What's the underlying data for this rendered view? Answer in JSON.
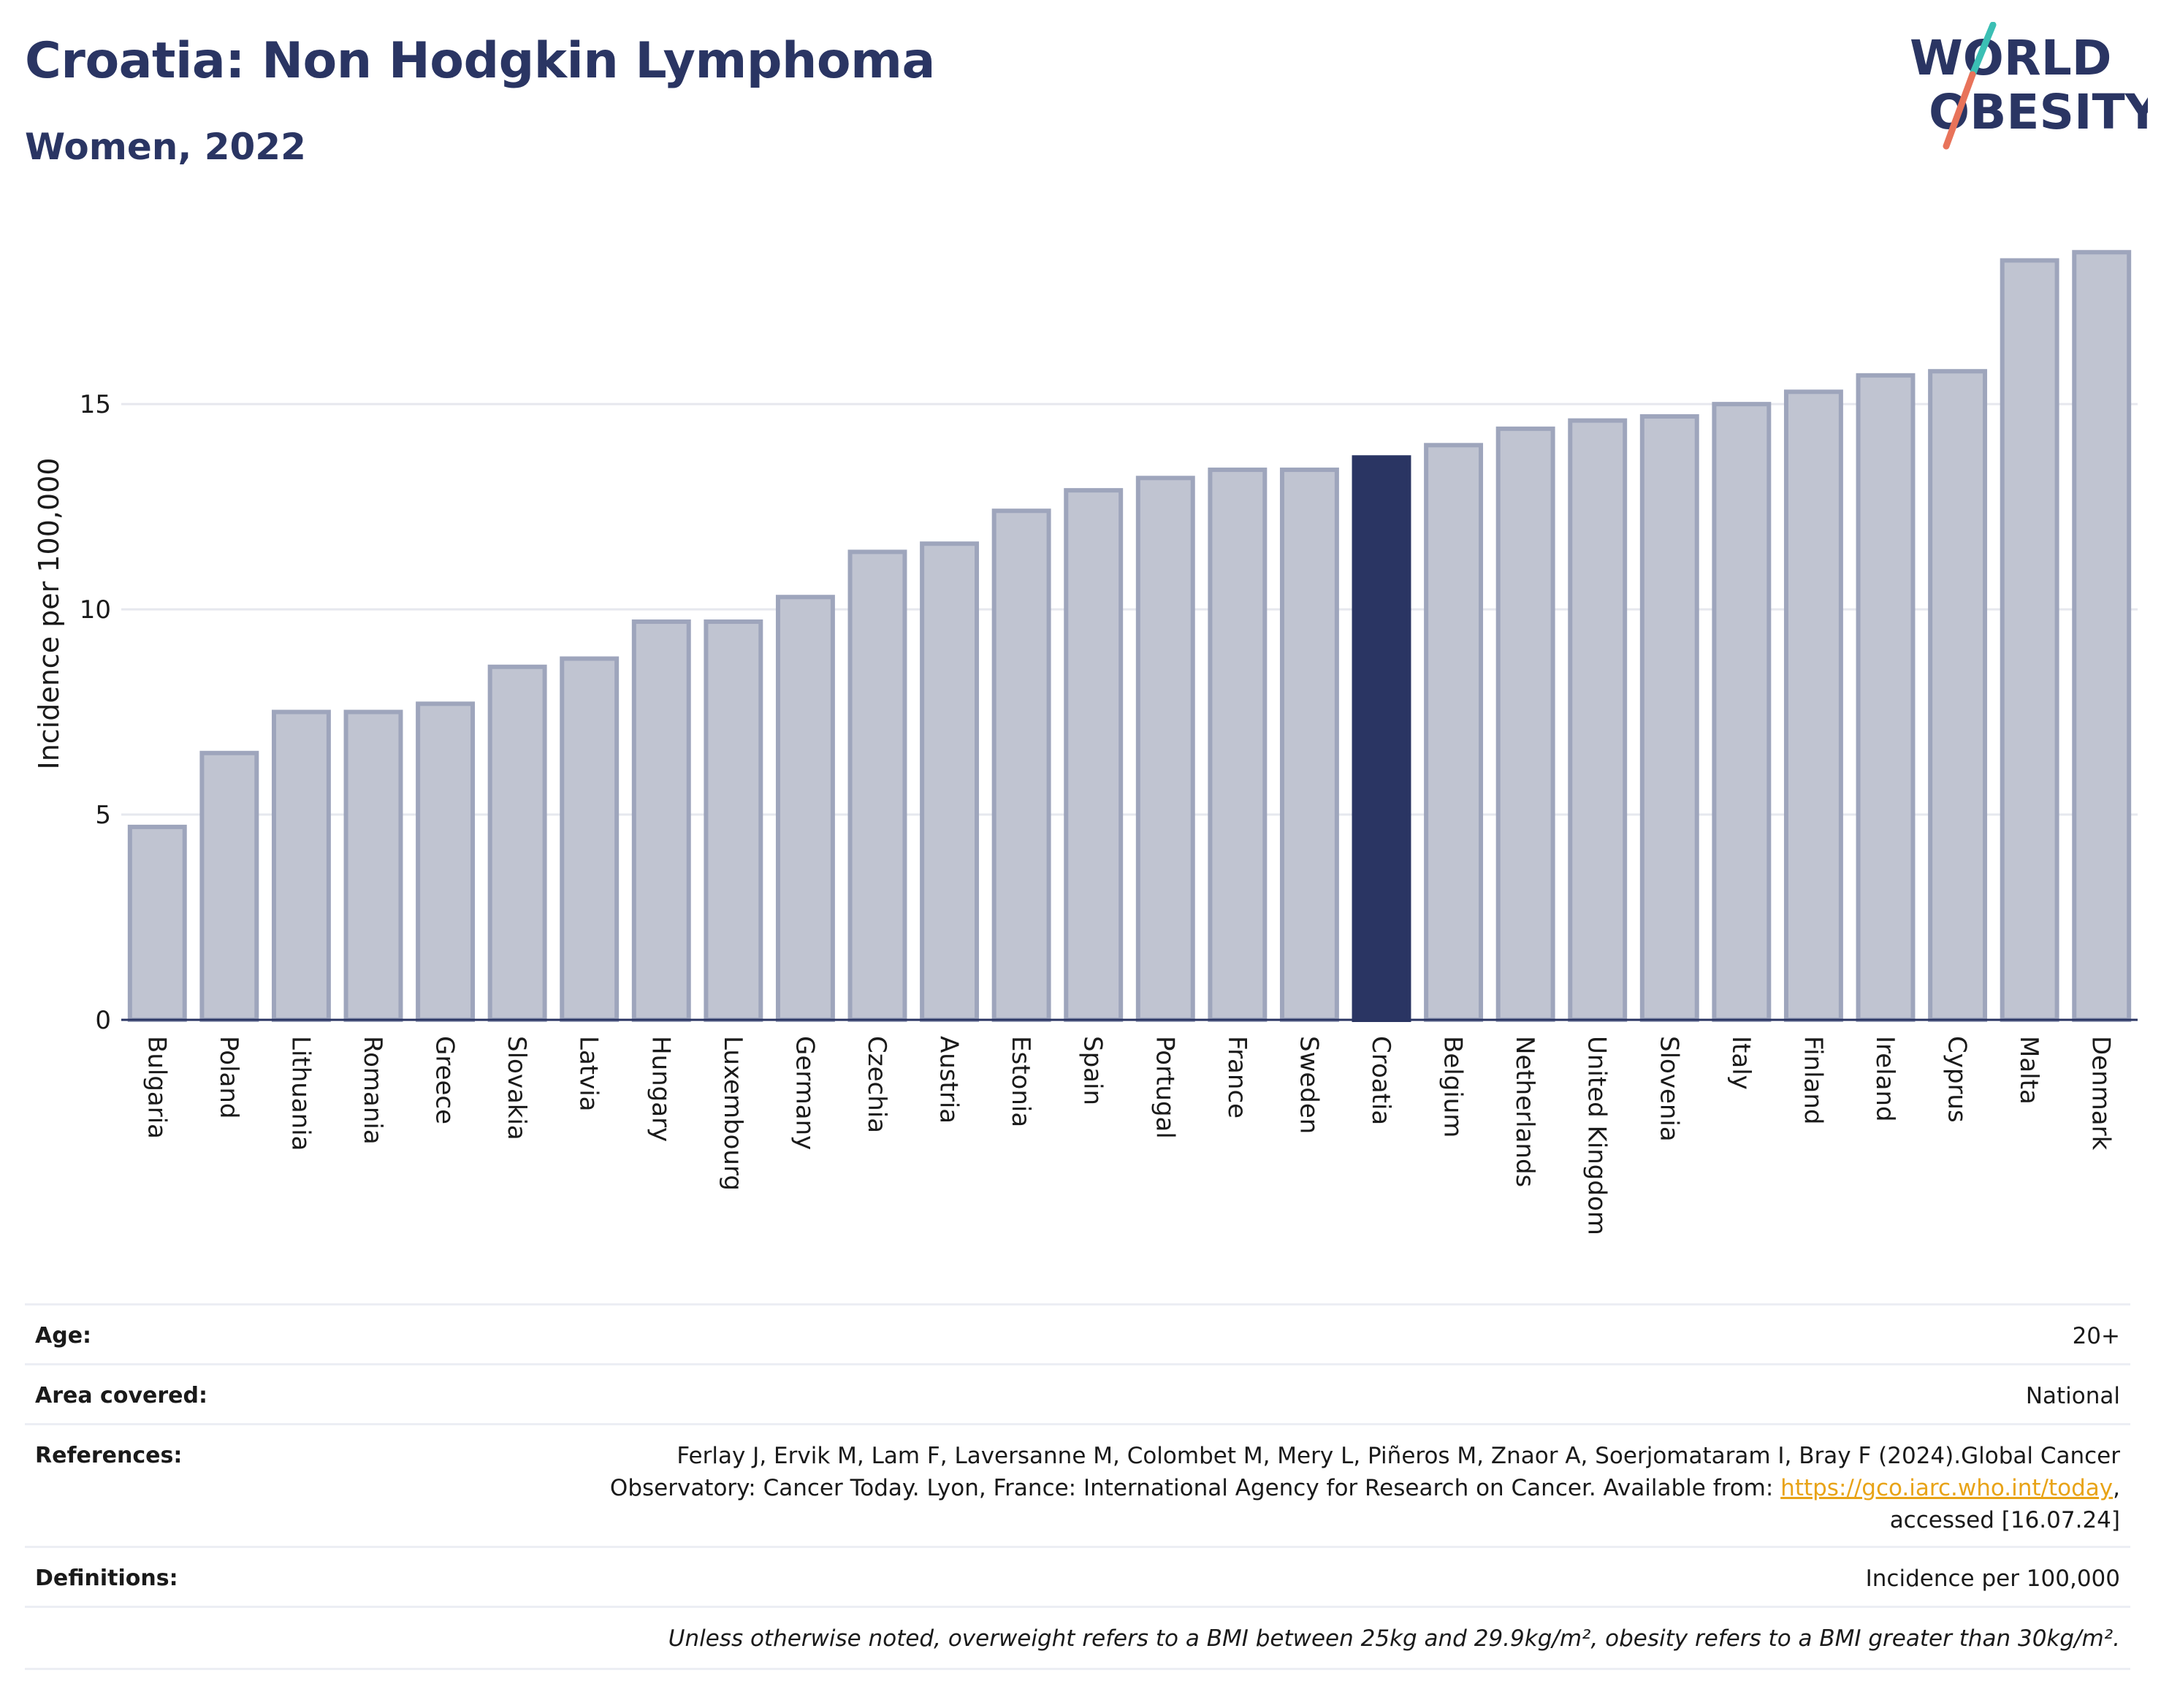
{
  "header": {
    "title": "Croatia: Non Hodgkin Lymphoma",
    "subtitle": "Women, 2022"
  },
  "logo": {
    "line1": "WORLD",
    "line2": "OBESITY",
    "colors": {
      "text": "#2a3563",
      "slash_top": "#3bbfb4",
      "slash_bottom": "#e8735a"
    }
  },
  "chart_data": {
    "type": "bar",
    "ylabel": "Incidence per 100,000",
    "xlabel": "",
    "ylim": [
      0,
      19
    ],
    "yticks": [
      0,
      5,
      10,
      15
    ],
    "grid": true,
    "highlight": "Croatia",
    "colors": {
      "bar": "#c0c4d1",
      "bar_border": "#9ea5bc",
      "highlight": "#2a3563",
      "grid": "#e6e8ee",
      "axis": "#2a3563"
    },
    "categories": [
      "Bulgaria",
      "Poland",
      "Lithuania",
      "Romania",
      "Greece",
      "Slovakia",
      "Latvia",
      "Hungary",
      "Luxembourg",
      "Germany",
      "Czechia",
      "Austria",
      "Estonia",
      "Spain",
      "Portugal",
      "France",
      "Sweden",
      "Croatia",
      "Belgium",
      "Netherlands",
      "United Kingdom",
      "Slovenia",
      "Italy",
      "Finland",
      "Ireland",
      "Cyprus",
      "Malta",
      "Denmark"
    ],
    "values": [
      4.7,
      6.5,
      7.5,
      7.5,
      7.7,
      8.6,
      8.8,
      9.7,
      9.7,
      10.3,
      11.4,
      11.6,
      12.4,
      12.9,
      13.2,
      13.4,
      13.4,
      13.7,
      14.0,
      14.4,
      14.6,
      14.7,
      15.0,
      15.3,
      15.7,
      15.8,
      18.5,
      18.7
    ]
  },
  "meta": {
    "age_label": "Age:",
    "age_value": "20+",
    "area_label": "Area covered:",
    "area_value": "National",
    "references_label": "References:",
    "references_line1": "Ferlay J, Ervik M, Lam F, Laversanne M, Colombet M, Mery L, Piñeros M, Znaor A, Soerjomataram I, Bray F (2024).Global Cancer",
    "references_line2_pre": "Observatory: Cancer Today. Lyon, France: International Agency for Research on Cancer. Available from: ",
    "references_link": "https://gco.iarc.who.int/today",
    "references_line2_post": ",",
    "references_line3": "accessed [16.07.24]",
    "definitions_label": "Definitions:",
    "definitions_value": "Incidence per 100,000",
    "note": "Unless otherwise noted, overweight refers to a BMI between 25kg and 29.9kg/m², obesity refers to a BMI greater than 30kg/m²."
  }
}
